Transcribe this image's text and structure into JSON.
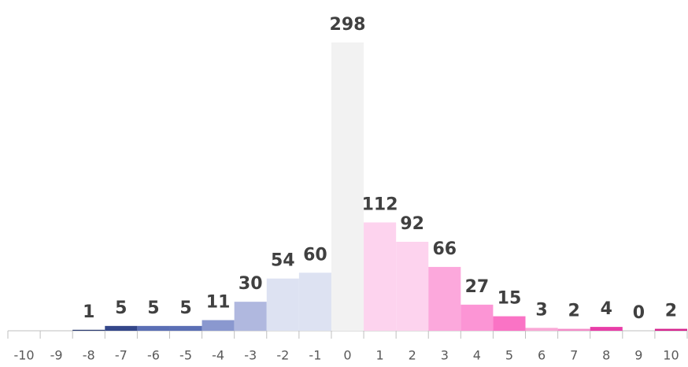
{
  "chart_data": {
    "type": "bar",
    "categories": [
      "-10",
      "-9",
      "-8",
      "-7",
      "-6",
      "-5",
      "-4",
      "-3",
      "-2",
      "-1",
      "0",
      "1",
      "2",
      "3",
      "4",
      "5",
      "6",
      "7",
      "8",
      "9",
      "10"
    ],
    "values": [
      null,
      null,
      1,
      5,
      5,
      5,
      11,
      30,
      54,
      60,
      298,
      112,
      92,
      66,
      27,
      15,
      3,
      2,
      4,
      0,
      2
    ],
    "colors": [
      "#2e3f73",
      "#2e3f73",
      "#2e3f73",
      "#34478a",
      "#5b6fb5",
      "#5b6fb5",
      "#8a98cf",
      "#b0b8df",
      "#dde2f2",
      "#dde2f2",
      "#f2f2f2",
      "#fdd3ee",
      "#fdd3ee",
      "#fca8dc",
      "#fc95d5",
      "#fa73c5",
      "#f9a8d6",
      "#f48cc9",
      "#e83ea8",
      "#e03a9e",
      "#d6268f"
    ],
    "ylim": [
      0,
      300
    ]
  }
}
